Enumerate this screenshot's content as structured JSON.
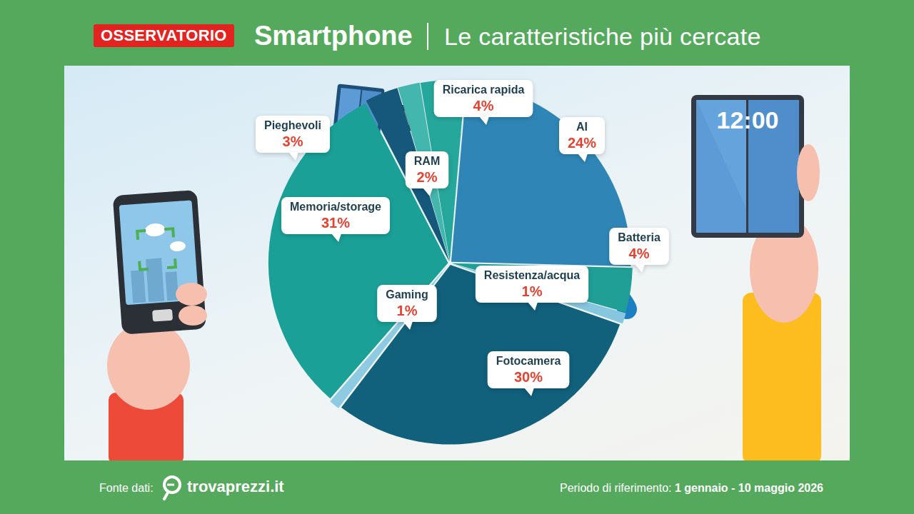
{
  "header": {
    "badge": "OSSERVATORIO"
  },
  "chart_data": {
    "type": "pie",
    "title": "Smartphone",
    "subtitle": "Le caratteristiche più cercate",
    "categories": [
      "AI",
      "Batteria",
      "Resistenza/acqua",
      "Fotocamera",
      "Gaming",
      "Memoria/storage",
      "Pieghevoli",
      "RAM",
      "Ricarica rapida"
    ],
    "values": [
      24,
      4,
      1,
      30,
      1,
      31,
      3,
      2,
      4
    ],
    "value_labels": [
      "24%",
      "4%",
      "1%",
      "30%",
      "1%",
      "31%",
      "3%",
      "2%",
      "4%"
    ],
    "colors": [
      "#2f86b6",
      "#1f9f96",
      "#86c6de",
      "#11607c",
      "#8ecbe2",
      "#1aa097",
      "#15587c",
      "#43b6ad",
      "#26a79c"
    ],
    "data_labels": true
  },
  "footer": {
    "source_label": "Fonte dati:",
    "source": "trovaprezzi.it",
    "period_label": "Periodo di riferimento:",
    "period": "1 gennaio - 10 maggio 2026"
  },
  "illustration": {
    "clock": "12:00"
  }
}
